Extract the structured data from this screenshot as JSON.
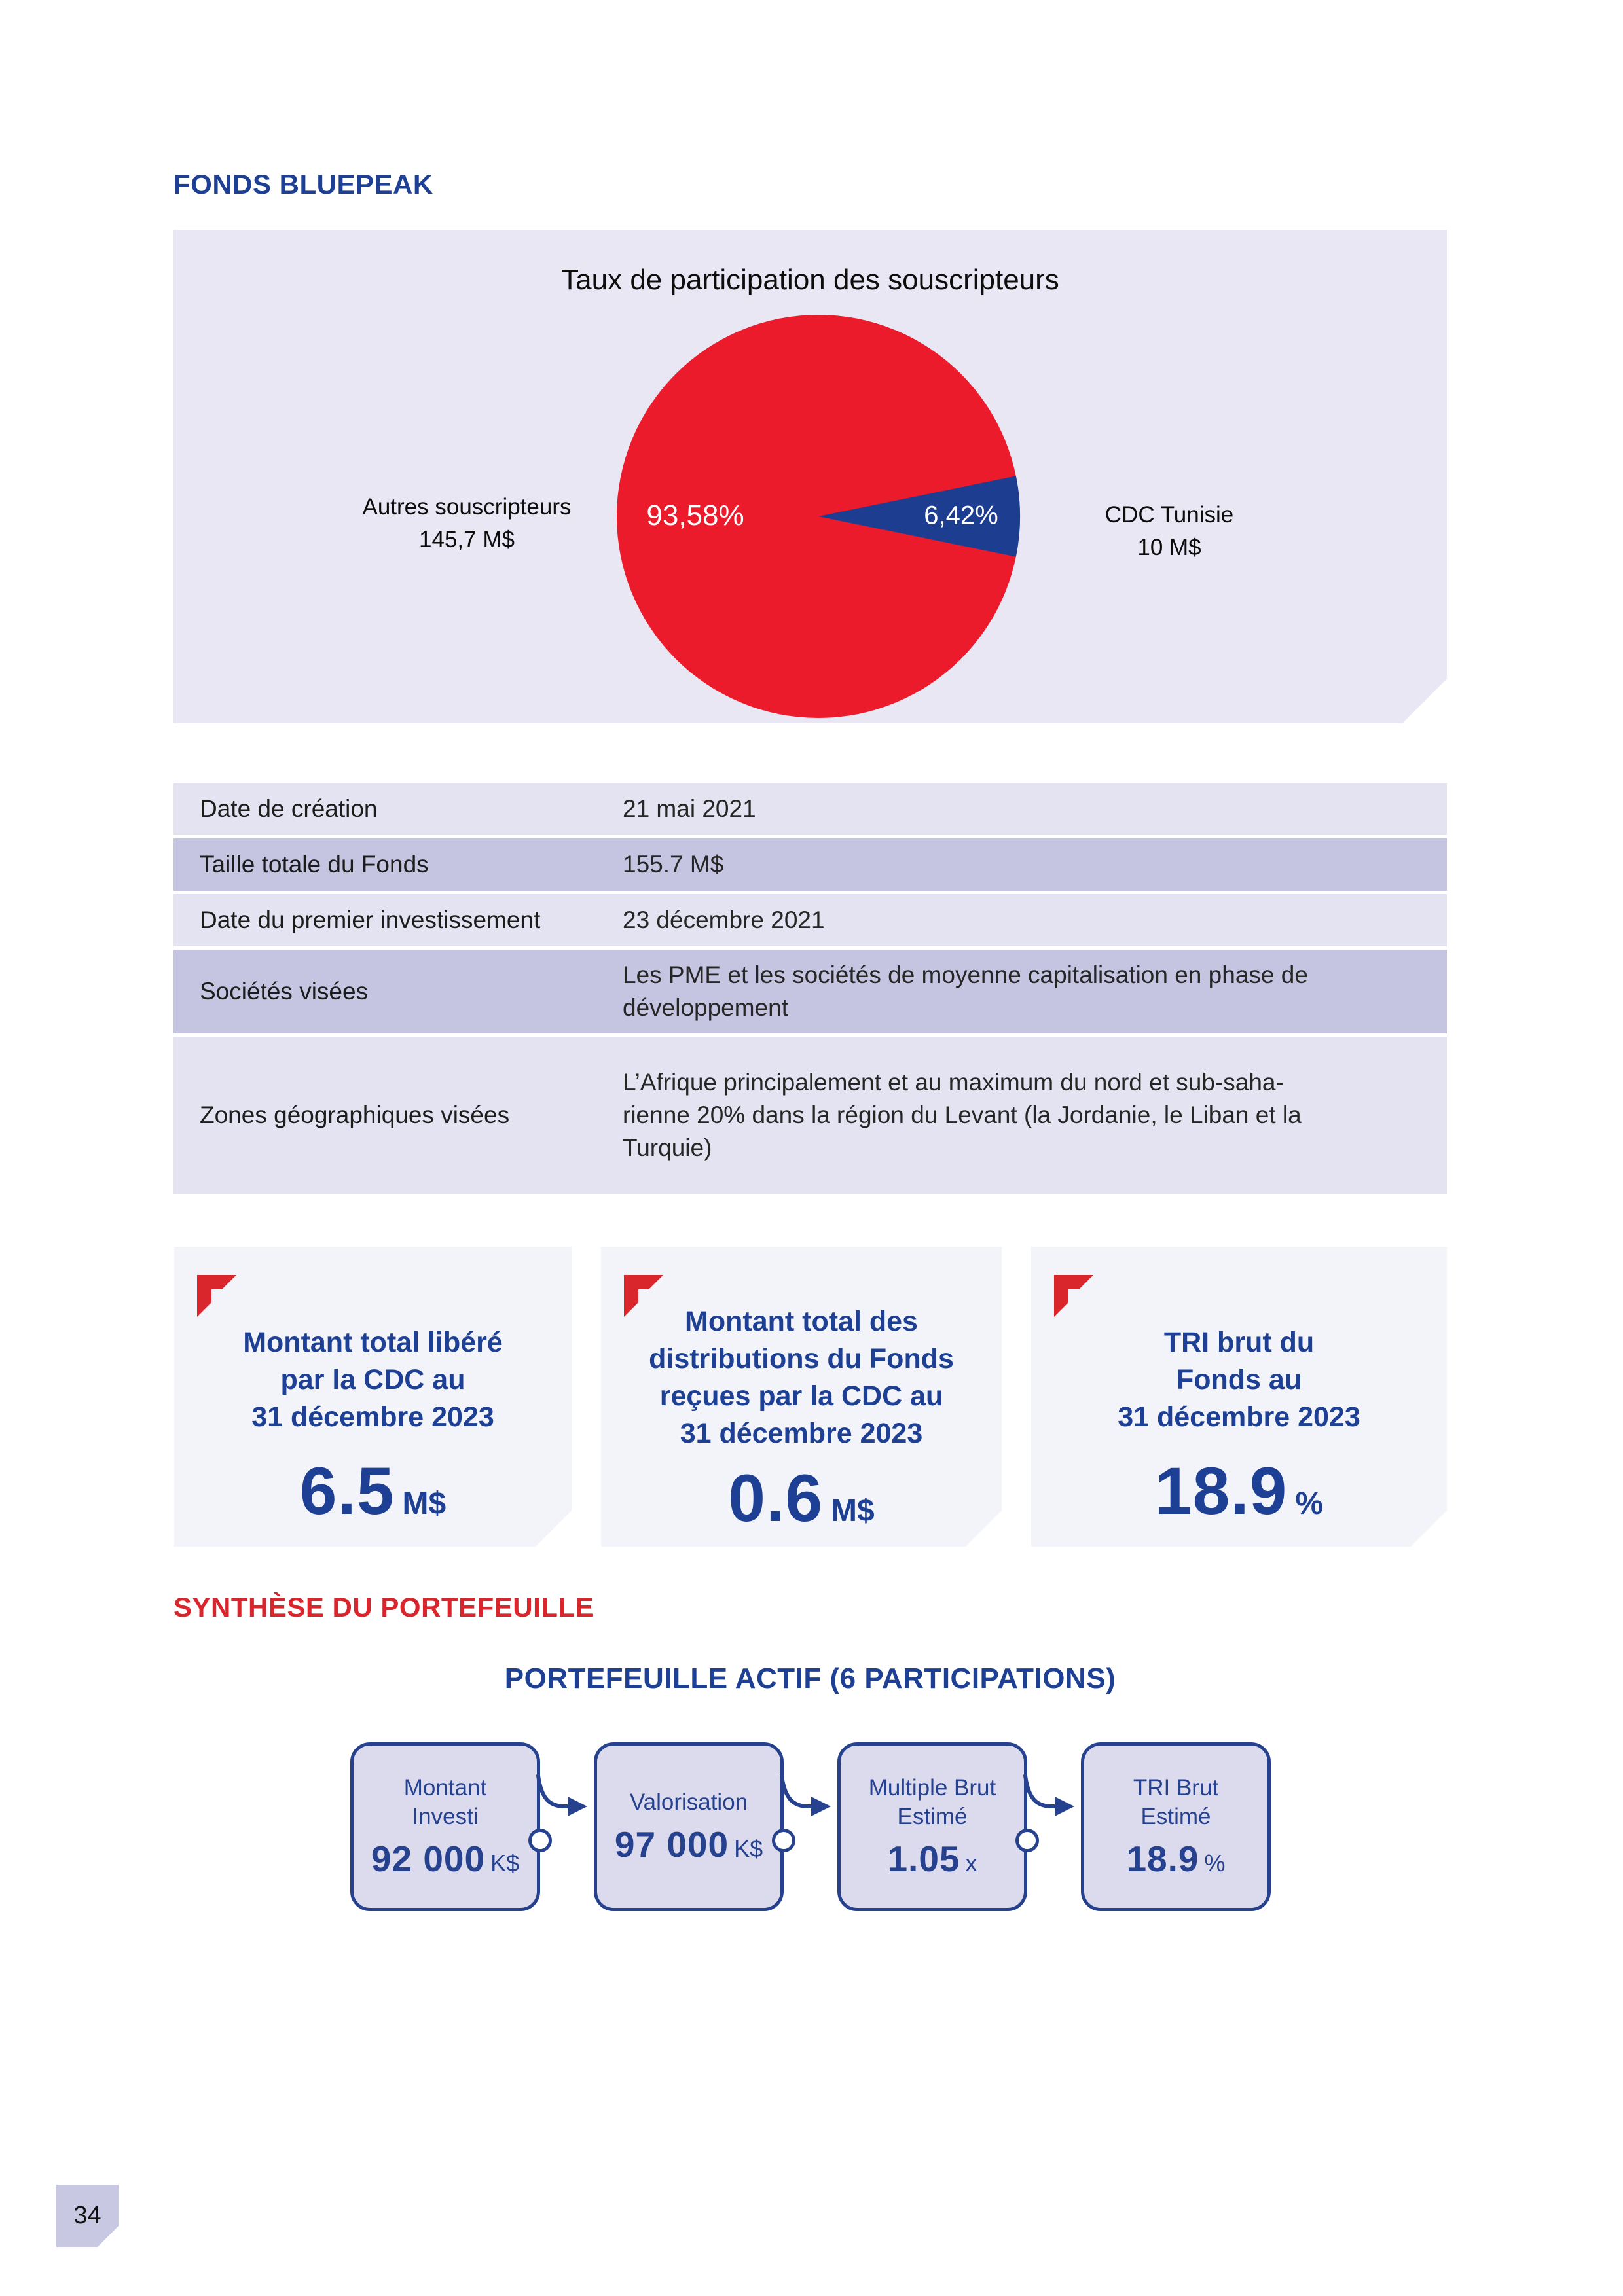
{
  "page": {
    "number": "34"
  },
  "header": {
    "title": "FONDS BLUEPEAK"
  },
  "colors": {
    "accent_blue": "#1e4094",
    "accent_red": "#d8262c",
    "pie_red": "#ec1b2b",
    "pie_blue": "#1d3d90",
    "panel_bg": "#e8e7f3",
    "row_light": "#e4e3f1",
    "row_dark": "#c5c4e1",
    "card_bg": "#f3f4fa",
    "box_fill": "#dcdbee",
    "box_border": "#26418e"
  },
  "chart": {
    "title": "Taux de participation des souscripteurs",
    "slices": [
      {
        "label": "Autres souscripteurs",
        "value_label": "145,7 M$",
        "pct_label": "93,58%",
        "pct": 93.58,
        "color": "#ec1b2b"
      },
      {
        "label": "CDC Tunisie",
        "value_label": "10 M$",
        "pct_label": "6,42%",
        "pct": 6.42,
        "color": "#1d3d90"
      }
    ]
  },
  "chart_data": {
    "type": "pie",
    "title": "Taux de participation des souscripteurs",
    "categories": [
      "Autres souscripteurs",
      "CDC Tunisie"
    ],
    "values": [
      93.58,
      6.42
    ],
    "value_labels": [
      "93,58%",
      "6,42%"
    ],
    "amount_labels": [
      "145,7 M$",
      "10 M$"
    ],
    "colors": [
      "#ec1b2b",
      "#1d3d90"
    ],
    "legend_position": "sides"
  },
  "table": {
    "rows": [
      {
        "label": "Date de création",
        "value_lines": [
          "21 mai 2021"
        ]
      },
      {
        "label": "Taille totale du Fonds",
        "value_lines": [
          "155.7 M$"
        ]
      },
      {
        "label": "Date du premier investissement",
        "value_lines": [
          "23 décembre 2021"
        ]
      },
      {
        "label": "Sociétés visées",
        "value_lines": [
          "Les PME et les sociétés de moyenne capitalisation en phase de",
          "développement"
        ]
      },
      {
        "label": "Zones géographiques visées",
        "value_lines": [
          "L’Afrique principalement et au maximum du nord et sub-saha-",
          "rienne 20% dans la région du Levant (la Jordanie, le Liban et la",
          "Turquie)"
        ]
      }
    ]
  },
  "cards": [
    {
      "title_lines": [
        "Montant total libéré",
        "par la CDC au",
        "31 décembre 2023"
      ],
      "value": "6.5",
      "unit": "M$"
    },
    {
      "title_lines": [
        "Montant total des",
        "distributions du Fonds",
        "reçues par la CDC au",
        "31 décembre 2023"
      ],
      "value": "0.6",
      "unit": "M$"
    },
    {
      "title_lines": [
        "TRI brut du",
        "Fonds au",
        "31 décembre 2023"
      ],
      "value": "18.9",
      "unit": "%"
    }
  ],
  "sections": {
    "synthese": "SYNTHÈSE DU PORTEFEUILLE",
    "portefeuille_actif": "PORTEFEUILLE ACTIF (6 PARTICIPATIONS)"
  },
  "flow": {
    "boxes": [
      {
        "label_lines": [
          "Montant",
          "Investi"
        ],
        "value": "92 000",
        "unit": "K$"
      },
      {
        "label_lines": [
          "Valorisation"
        ],
        "value": "97 000",
        "unit": "K$"
      },
      {
        "label_lines": [
          "Multiple Brut",
          "Estimé"
        ],
        "value": "1.05",
        "unit": "x"
      },
      {
        "label_lines": [
          "TRI Brut",
          "Estimé"
        ],
        "value": "18.9",
        "unit": "%"
      }
    ]
  }
}
